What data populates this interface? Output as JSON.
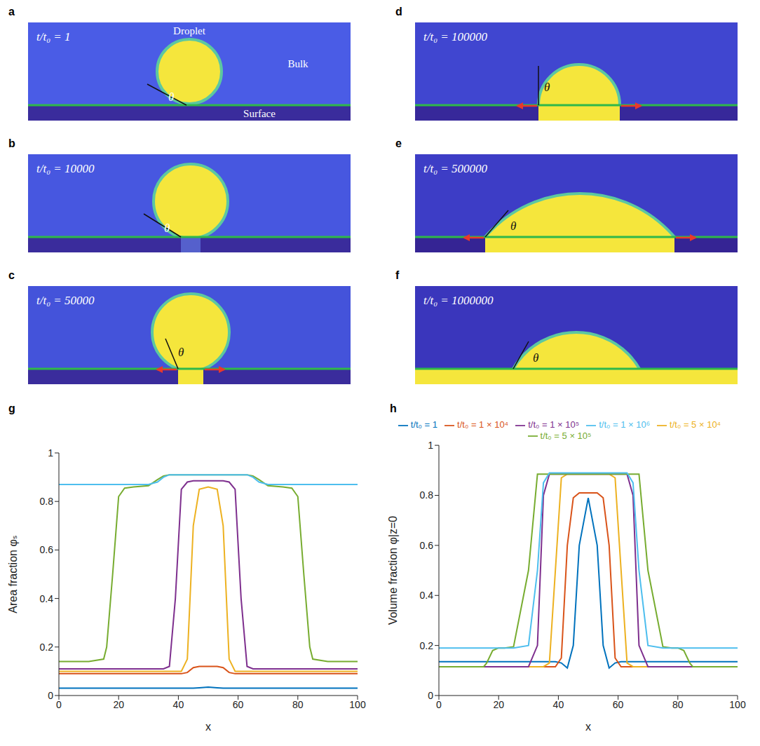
{
  "snapshots": [
    {
      "panel_label": "a",
      "time": "t/t₀ = 1",
      "angle_label": "θ",
      "labels": [
        "Droplet",
        "Bulk",
        "Surface"
      ]
    },
    {
      "panel_label": "b",
      "time": "t/t₀ = 10000",
      "angle_label": "θ"
    },
    {
      "panel_label": "c",
      "time": "t/t₀ = 50000",
      "angle_label": "θ"
    },
    {
      "panel_label": "d",
      "time": "t/t₀ = 100000",
      "angle_label": "θ"
    },
    {
      "panel_label": "e",
      "time": "t/t₀ = 500000",
      "angle_label": "θ"
    },
    {
      "panel_label": "f",
      "time": "t/t₀ = 1000000",
      "angle_label": "θ"
    }
  ],
  "chart_data": [
    {
      "type": "line",
      "panel_label": "g",
      "xlabel": "x",
      "ylabel": "Area fraction φₛ",
      "xlim": [
        0,
        100
      ],
      "xticks": [
        0,
        20,
        40,
        60,
        80,
        100
      ],
      "ylim": [
        0,
        1
      ],
      "yticks": [
        0,
        0.2,
        0.4,
        0.6,
        0.8,
        1
      ],
      "grid": false,
      "x": [
        0,
        5,
        10,
        15,
        16,
        18,
        20,
        22,
        25,
        30,
        33,
        35,
        37,
        39,
        41,
        43,
        45,
        47,
        50,
        53,
        55,
        57,
        59,
        61,
        63,
        65,
        67,
        70,
        75,
        78,
        80,
        82,
        84,
        85,
        90,
        95,
        100
      ],
      "series": [
        {
          "color": "#0072BD",
          "values": [
            0.03,
            0.03,
            0.03,
            0.03,
            0.03,
            0.03,
            0.03,
            0.03,
            0.03,
            0.03,
            0.03,
            0.03,
            0.03,
            0.03,
            0.03,
            0.03,
            0.03,
            0.032,
            0.035,
            0.032,
            0.03,
            0.03,
            0.03,
            0.03,
            0.03,
            0.03,
            0.03,
            0.03,
            0.03,
            0.03,
            0.03,
            0.03,
            0.03,
            0.03,
            0.03,
            0.03,
            0.03
          ]
        },
        {
          "color": "#D95319",
          "values": [
            0.09,
            0.09,
            0.09,
            0.09,
            0.09,
            0.09,
            0.09,
            0.09,
            0.09,
            0.09,
            0.09,
            0.09,
            0.09,
            0.09,
            0.09,
            0.095,
            0.115,
            0.12,
            0.12,
            0.12,
            0.115,
            0.095,
            0.09,
            0.09,
            0.09,
            0.09,
            0.09,
            0.09,
            0.09,
            0.09,
            0.09,
            0.09,
            0.09,
            0.09,
            0.09,
            0.09,
            0.09
          ]
        },
        {
          "color": "#EDB120",
          "values": [
            0.1,
            0.1,
            0.1,
            0.1,
            0.1,
            0.1,
            0.1,
            0.1,
            0.1,
            0.1,
            0.1,
            0.1,
            0.1,
            0.1,
            0.1,
            0.15,
            0.7,
            0.85,
            0.86,
            0.85,
            0.7,
            0.15,
            0.1,
            0.1,
            0.1,
            0.1,
            0.1,
            0.1,
            0.1,
            0.1,
            0.1,
            0.1,
            0.1,
            0.1,
            0.1,
            0.1,
            0.1
          ]
        },
        {
          "color": "#7E2F8E",
          "values": [
            0.11,
            0.11,
            0.11,
            0.11,
            0.11,
            0.11,
            0.11,
            0.11,
            0.11,
            0.11,
            0.11,
            0.11,
            0.12,
            0.4,
            0.85,
            0.88,
            0.885,
            0.885,
            0.885,
            0.885,
            0.885,
            0.88,
            0.85,
            0.4,
            0.12,
            0.11,
            0.11,
            0.11,
            0.11,
            0.11,
            0.11,
            0.11,
            0.11,
            0.11,
            0.11,
            0.11,
            0.11
          ]
        },
        {
          "color": "#77AC30",
          "values": [
            0.14,
            0.14,
            0.14,
            0.15,
            0.2,
            0.5,
            0.82,
            0.855,
            0.86,
            0.865,
            0.89,
            0.905,
            0.91,
            0.91,
            0.91,
            0.91,
            0.91,
            0.91,
            0.91,
            0.91,
            0.91,
            0.91,
            0.91,
            0.91,
            0.91,
            0.905,
            0.89,
            0.865,
            0.86,
            0.855,
            0.82,
            0.5,
            0.2,
            0.15,
            0.14,
            0.14,
            0.14
          ]
        },
        {
          "color": "#4DBEEE",
          "values": [
            0.87,
            0.87,
            0.87,
            0.87,
            0.87,
            0.87,
            0.87,
            0.87,
            0.87,
            0.87,
            0.88,
            0.9,
            0.91,
            0.91,
            0.91,
            0.91,
            0.91,
            0.91,
            0.91,
            0.91,
            0.91,
            0.91,
            0.91,
            0.91,
            0.91,
            0.9,
            0.88,
            0.87,
            0.87,
            0.87,
            0.87,
            0.87,
            0.87,
            0.87,
            0.87,
            0.87,
            0.87
          ]
        }
      ]
    },
    {
      "type": "line",
      "panel_label": "h",
      "xlabel": "x",
      "ylabel": "Volume fraction φ|z=0",
      "xlim": [
        0,
        100
      ],
      "xticks": [
        0,
        20,
        40,
        60,
        80,
        100
      ],
      "ylim": [
        0,
        1
      ],
      "yticks": [
        0,
        0.2,
        0.4,
        0.6,
        0.8,
        1
      ],
      "grid": false,
      "legend": "top",
      "x": [
        0,
        5,
        10,
        15,
        16,
        18,
        20,
        22,
        25,
        30,
        33,
        35,
        37,
        39,
        41,
        43,
        45,
        47,
        50,
        53,
        55,
        57,
        59,
        61,
        63,
        65,
        67,
        70,
        75,
        78,
        80,
        82,
        84,
        85,
        90,
        95,
        100
      ],
      "series": [
        {
          "name": "t/t₀ = 1",
          "color": "#0072BD",
          "values": [
            0.135,
            0.135,
            0.135,
            0.135,
            0.135,
            0.135,
            0.135,
            0.135,
            0.135,
            0.135,
            0.135,
            0.135,
            0.135,
            0.135,
            0.13,
            0.11,
            0.2,
            0.6,
            0.79,
            0.6,
            0.2,
            0.11,
            0.13,
            0.135,
            0.135,
            0.135,
            0.135,
            0.135,
            0.135,
            0.135,
            0.135,
            0.135,
            0.135,
            0.135,
            0.135,
            0.135,
            0.135
          ]
        },
        {
          "name": "t/t₀ = 1 × 10⁴",
          "color": "#D95319",
          "values": [
            0.115,
            0.115,
            0.115,
            0.115,
            0.115,
            0.115,
            0.115,
            0.115,
            0.115,
            0.115,
            0.115,
            0.115,
            0.115,
            0.115,
            0.15,
            0.6,
            0.79,
            0.81,
            0.81,
            0.81,
            0.79,
            0.6,
            0.15,
            0.115,
            0.115,
            0.115,
            0.115,
            0.115,
            0.115,
            0.115,
            0.115,
            0.115,
            0.115,
            0.115,
            0.115,
            0.115,
            0.115
          ]
        },
        {
          "name": "t/t₀ = 5 × 10⁴",
          "color": "#EDB120",
          "values": [
            0.115,
            0.115,
            0.115,
            0.115,
            0.115,
            0.115,
            0.115,
            0.115,
            0.115,
            0.115,
            0.115,
            0.115,
            0.13,
            0.5,
            0.87,
            0.885,
            0.885,
            0.885,
            0.885,
            0.885,
            0.885,
            0.885,
            0.87,
            0.5,
            0.13,
            0.115,
            0.115,
            0.115,
            0.115,
            0.115,
            0.115,
            0.115,
            0.115,
            0.115,
            0.115,
            0.115,
            0.115
          ]
        },
        {
          "name": "t/t₀ = 1 × 10⁵",
          "color": "#7E2F8E",
          "values": [
            0.115,
            0.115,
            0.115,
            0.115,
            0.115,
            0.115,
            0.115,
            0.115,
            0.115,
            0.115,
            0.2,
            0.8,
            0.885,
            0.885,
            0.885,
            0.885,
            0.885,
            0.885,
            0.885,
            0.885,
            0.885,
            0.885,
            0.885,
            0.885,
            0.885,
            0.8,
            0.2,
            0.115,
            0.115,
            0.115,
            0.115,
            0.115,
            0.115,
            0.115,
            0.115,
            0.115,
            0.115
          ]
        },
        {
          "name": "t/t₀ = 5 × 10⁵",
          "color": "#77AC30",
          "values": [
            0.115,
            0.115,
            0.115,
            0.115,
            0.13,
            0.18,
            0.19,
            0.19,
            0.195,
            0.5,
            0.885,
            0.885,
            0.885,
            0.885,
            0.885,
            0.885,
            0.885,
            0.885,
            0.885,
            0.885,
            0.885,
            0.885,
            0.885,
            0.885,
            0.885,
            0.885,
            0.885,
            0.5,
            0.195,
            0.19,
            0.19,
            0.18,
            0.13,
            0.115,
            0.115,
            0.115,
            0.115
          ]
        },
        {
          "name": "t/t₀ = 1 × 10⁶",
          "color": "#4DBEEE",
          "values": [
            0.19,
            0.19,
            0.19,
            0.19,
            0.19,
            0.19,
            0.19,
            0.19,
            0.19,
            0.2,
            0.5,
            0.85,
            0.89,
            0.89,
            0.89,
            0.89,
            0.89,
            0.89,
            0.89,
            0.89,
            0.89,
            0.89,
            0.89,
            0.89,
            0.89,
            0.85,
            0.5,
            0.2,
            0.19,
            0.19,
            0.19,
            0.19,
            0.19,
            0.19,
            0.19,
            0.19,
            0.19
          ]
        }
      ]
    }
  ]
}
